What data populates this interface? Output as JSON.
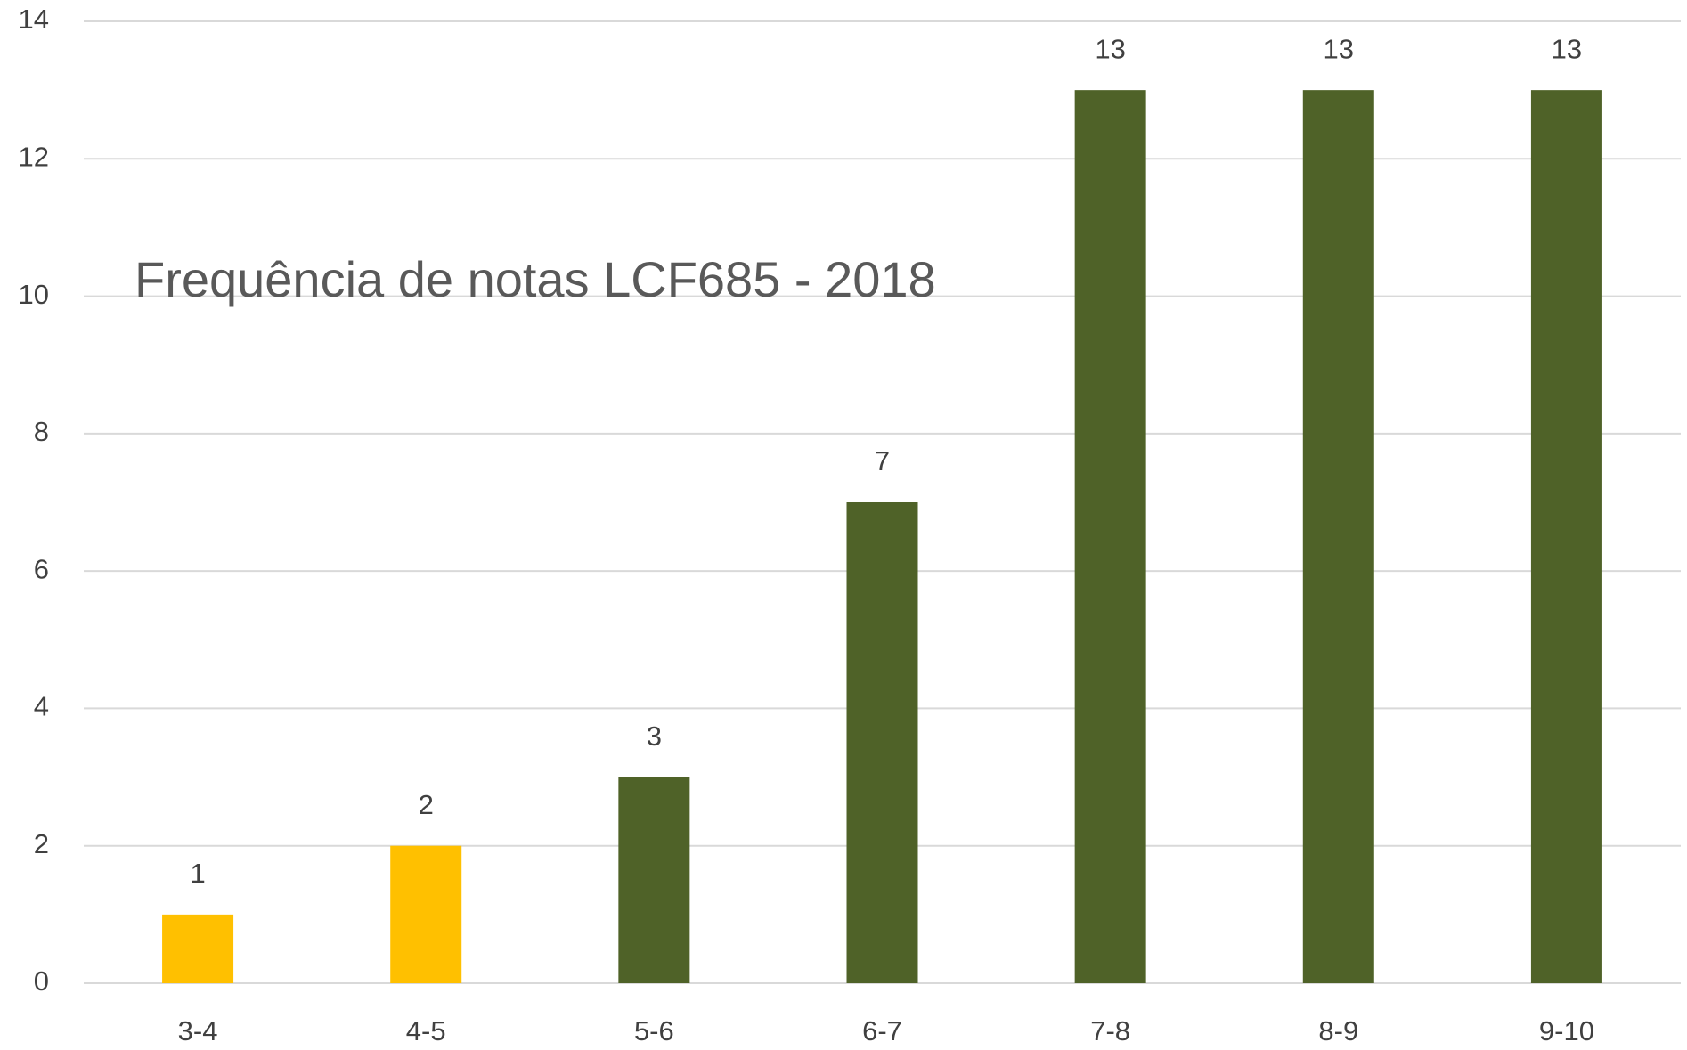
{
  "chart_data": {
    "type": "bar",
    "title": "Frequência de notas LCF685 - 2018",
    "categories": [
      "3-4",
      "4-5",
      "5-6",
      "6-7",
      "7-8",
      "8-9",
      "9-10"
    ],
    "values": [
      1,
      2,
      3,
      7,
      13,
      13,
      13
    ],
    "colors": [
      "#FFC000",
      "#FFC000",
      "#4F6228",
      "#4F6228",
      "#4F6228",
      "#4F6228",
      "#4F6228"
    ],
    "ylim": [
      0,
      14
    ],
    "yticks": [
      0,
      2,
      4,
      6,
      8,
      10,
      12,
      14
    ],
    "grid": true
  }
}
